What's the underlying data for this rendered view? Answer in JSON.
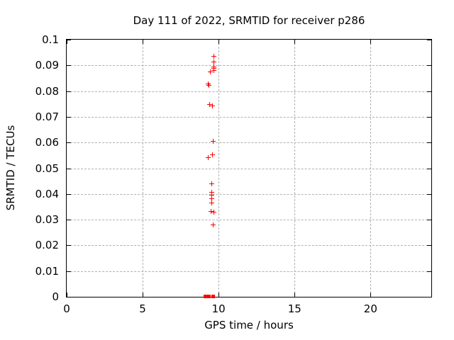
{
  "colors": {
    "marker": "#ff0000",
    "grid": "#b0b0b0",
    "axis": "#000000",
    "background": "#ffffff",
    "text": "#000000"
  },
  "chart_data": {
    "type": "scatter",
    "title": "Day 111 of 2022, SRMTID for receiver p286",
    "xlabel": "GPS time / hours",
    "ylabel": "SRMTID / TECUs",
    "xlim": [
      0,
      24
    ],
    "ylim": [
      0,
      0.1
    ],
    "grid": true,
    "legend": "none",
    "x_ticks": [
      {
        "value": 0,
        "label": "0"
      },
      {
        "value": 5,
        "label": "5"
      },
      {
        "value": 10,
        "label": "10"
      },
      {
        "value": 15,
        "label": "15"
      },
      {
        "value": 20,
        "label": "20"
      }
    ],
    "y_ticks": [
      {
        "value": 0,
        "label": "0"
      },
      {
        "value": 0.01,
        "label": "0.01"
      },
      {
        "value": 0.02,
        "label": "0.02"
      },
      {
        "value": 0.03,
        "label": "0.03"
      },
      {
        "value": 0.04,
        "label": "0.04"
      },
      {
        "value": 0.05,
        "label": "0.05"
      },
      {
        "value": 0.06,
        "label": "0.06"
      },
      {
        "value": 0.07,
        "label": "0.07"
      },
      {
        "value": 0.08,
        "label": "0.08"
      },
      {
        "value": 0.09,
        "label": "0.09"
      },
      {
        "value": 0.1,
        "label": "0.1"
      }
    ],
    "series": [
      {
        "marker": "plus",
        "color": "#ff0000",
        "points": [
          [
            9.71,
            0.0934
          ],
          [
            9.71,
            0.0911
          ],
          [
            9.71,
            0.0893
          ],
          [
            9.71,
            0.0886
          ],
          [
            9.71,
            0.0879
          ],
          [
            9.49,
            0.0873
          ],
          [
            9.36,
            0.0826
          ],
          [
            9.4,
            0.0822
          ],
          [
            9.43,
            0.0746
          ],
          [
            9.64,
            0.0741
          ],
          [
            9.66,
            0.0603
          ],
          [
            9.61,
            0.0551
          ],
          [
            9.33,
            0.0539
          ],
          [
            9.57,
            0.0437
          ],
          [
            9.57,
            0.0406
          ],
          [
            9.57,
            0.0395
          ],
          [
            9.57,
            0.0379
          ],
          [
            9.57,
            0.0364
          ],
          [
            9.53,
            0.033
          ],
          [
            9.69,
            0.0328
          ],
          [
            9.66,
            0.0279
          ]
        ]
      },
      {
        "marker": "filled-square",
        "color": "#ff0000",
        "points": [
          [
            9.17,
            0
          ],
          [
            9.4,
            0
          ],
          [
            9.65,
            0
          ]
        ]
      }
    ]
  }
}
